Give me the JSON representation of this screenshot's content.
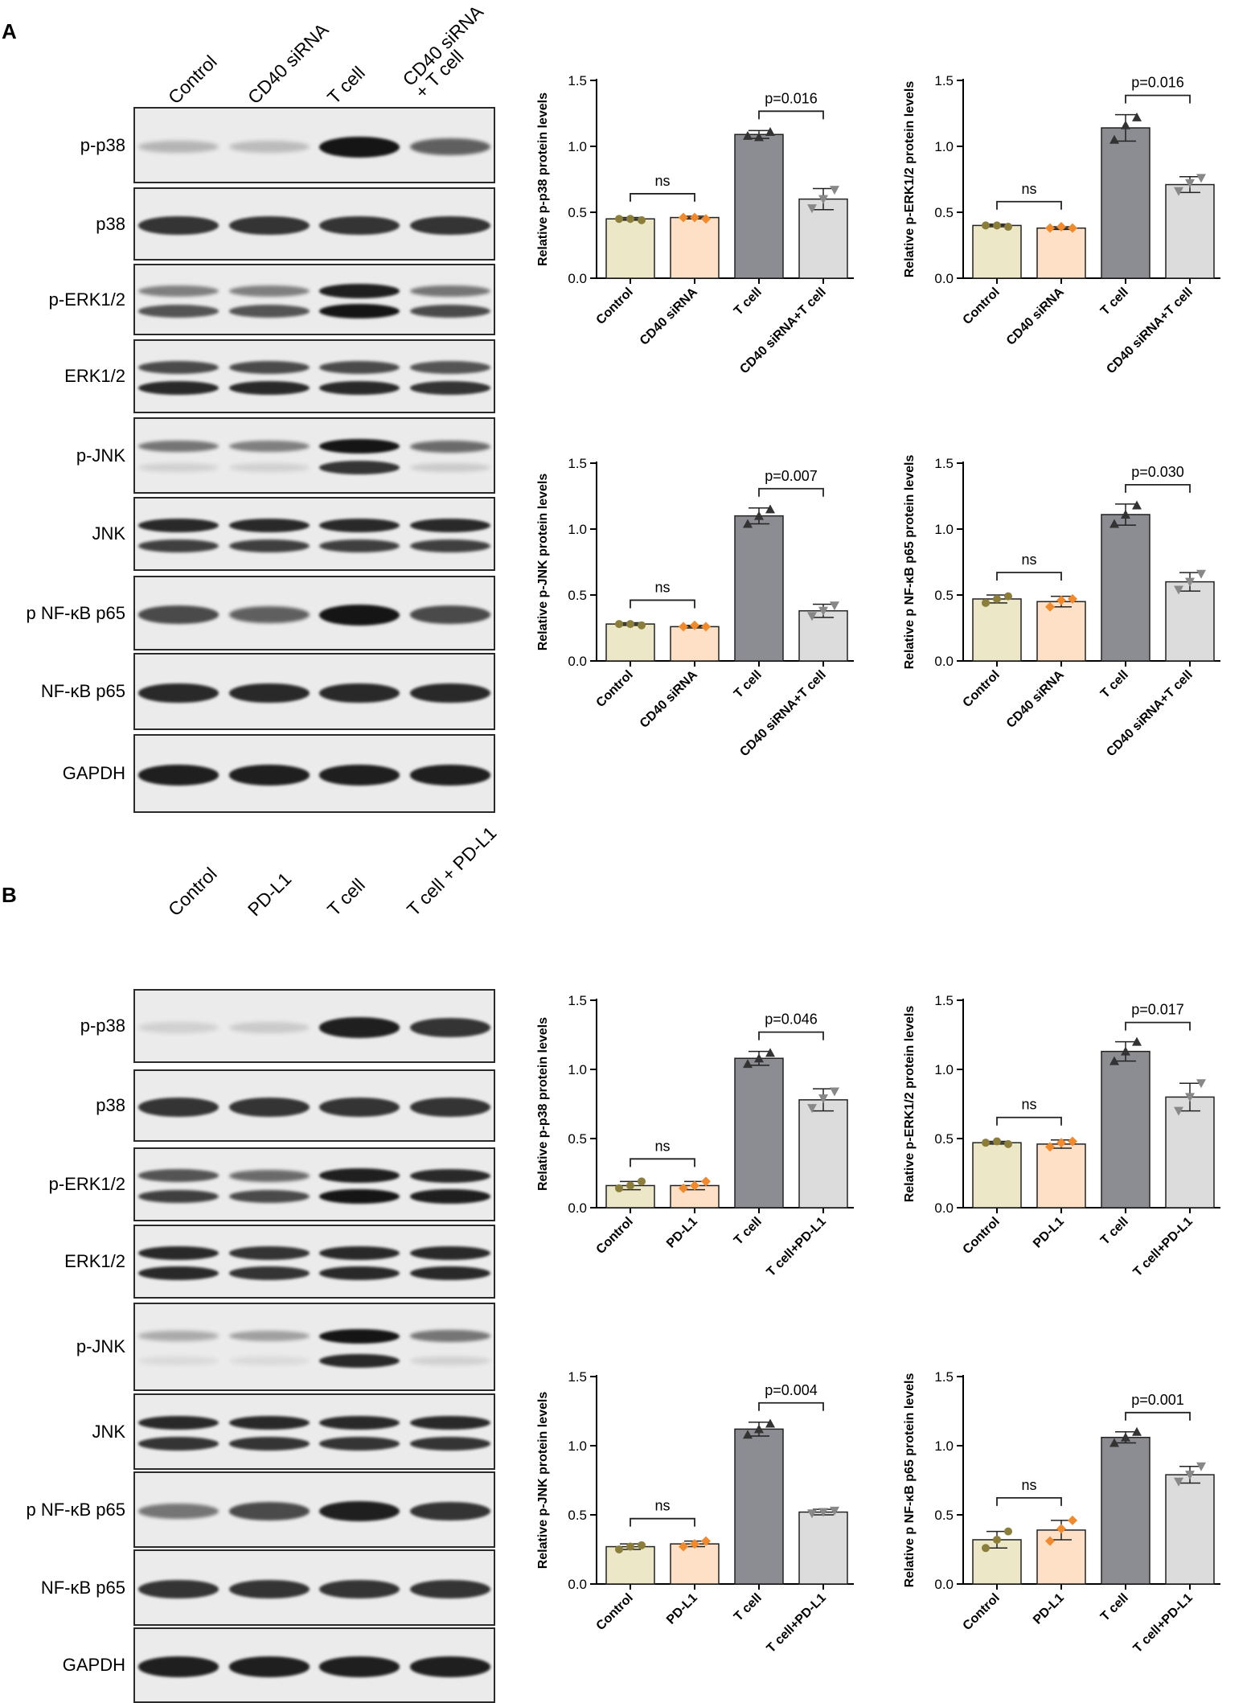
{
  "panels": [
    {
      "letter": "A",
      "lanes": [
        "Control",
        "CD40 siRNA",
        "T cell",
        "CD40 siRNA\n+ T cell"
      ],
      "blots": [
        {
          "label": "p-p38",
          "bands": [
            [
              0.25
            ],
            [
              0.22
            ],
            [
              1.0
            ],
            [
              0.65
            ]
          ]
        },
        {
          "label": "p38",
          "bands": [
            [
              0.85
            ],
            [
              0.85
            ],
            [
              0.85
            ],
            [
              0.85
            ]
          ]
        },
        {
          "label": "p-ERK1/2",
          "bands": [
            [
              0.5,
              0.7
            ],
            [
              0.5,
              0.7
            ],
            [
              0.95,
              1.0
            ],
            [
              0.55,
              0.75
            ]
          ]
        },
        {
          "label": "ERK1/2",
          "bands": [
            [
              0.75,
              0.9
            ],
            [
              0.75,
              0.9
            ],
            [
              0.75,
              0.9
            ],
            [
              0.7,
              0.85
            ]
          ]
        },
        {
          "label": "p-JNK",
          "bands": [
            [
              0.55,
              0.12
            ],
            [
              0.5,
              0.12
            ],
            [
              1.0,
              0.85
            ],
            [
              0.6,
              0.15
            ]
          ]
        },
        {
          "label": "JNK",
          "bands": [
            [
              0.9,
              0.8
            ],
            [
              0.9,
              0.8
            ],
            [
              0.9,
              0.8
            ],
            [
              0.9,
              0.8
            ]
          ]
        },
        {
          "label": "p NF-κB p65",
          "bands": [
            [
              0.75
            ],
            [
              0.65
            ],
            [
              1.0
            ],
            [
              0.75
            ]
          ]
        },
        {
          "label": "NF-κB p65",
          "bands": [
            [
              0.9
            ],
            [
              0.9
            ],
            [
              0.9
            ],
            [
              0.9
            ]
          ]
        },
        {
          "label": "GAPDH",
          "bands": [
            [
              0.95
            ],
            [
              0.95
            ],
            [
              0.95
            ],
            [
              0.95
            ]
          ]
        }
      ]
    },
    {
      "letter": "B",
      "lanes": [
        "Control",
        "PD-L1",
        "T cell",
        "T cell + PD-L1"
      ],
      "blots": [
        {
          "label": "p-p38",
          "bands": [
            [
              0.12
            ],
            [
              0.15
            ],
            [
              0.95
            ],
            [
              0.85
            ]
          ]
        },
        {
          "label": "p38",
          "bands": [
            [
              0.85
            ],
            [
              0.85
            ],
            [
              0.85
            ],
            [
              0.85
            ]
          ]
        },
        {
          "label": "p-ERK1/2",
          "bands": [
            [
              0.7,
              0.8
            ],
            [
              0.6,
              0.75
            ],
            [
              0.95,
              1.0
            ],
            [
              0.9,
              0.95
            ]
          ]
        },
        {
          "label": "ERK1/2",
          "bands": [
            [
              0.9,
              0.9
            ],
            [
              0.85,
              0.85
            ],
            [
              0.9,
              0.9
            ],
            [
              0.9,
              0.9
            ]
          ]
        },
        {
          "label": "p-JNK",
          "bands": [
            [
              0.3,
              0.05
            ],
            [
              0.35,
              0.08
            ],
            [
              1.0,
              0.9
            ],
            [
              0.55,
              0.12
            ]
          ]
        },
        {
          "label": "JNK",
          "bands": [
            [
              0.9,
              0.85
            ],
            [
              0.9,
              0.85
            ],
            [
              0.9,
              0.85
            ],
            [
              0.9,
              0.85
            ]
          ]
        },
        {
          "label": "p NF-κB p65",
          "bands": [
            [
              0.55
            ],
            [
              0.75
            ],
            [
              0.95
            ],
            [
              0.85
            ]
          ]
        },
        {
          "label": "NF-κB p65",
          "bands": [
            [
              0.85
            ],
            [
              0.85
            ],
            [
              0.85
            ],
            [
              0.85
            ]
          ]
        },
        {
          "label": "GAPDH",
          "bands": [
            [
              0.95
            ],
            [
              0.95
            ],
            [
              0.95
            ],
            [
              0.95
            ]
          ]
        }
      ]
    }
  ],
  "colors": {
    "control": "#ece7c6",
    "treat": "#fde0c5",
    "tcell": "#8c8c93",
    "combo": "#dcdcdc",
    "dot_control": "#8b7d3a",
    "dot_treat": "#f08a2c",
    "dot_tcell": "#333333",
    "dot_combo": "#888888"
  },
  "chart_data": [
    {
      "type": "bar",
      "panel": "A",
      "categories": [
        "Control",
        "CD40 siRNA",
        "T cell",
        "CD40 siRNA+T cell"
      ],
      "values": [
        0.45,
        0.46,
        1.09,
        0.6
      ],
      "errors": [
        0.01,
        0.01,
        0.03,
        0.08
      ],
      "points": [
        [
          0.45,
          0.44,
          0.45
        ],
        [
          0.46,
          0.45,
          0.46
        ],
        [
          1.08,
          1.11,
          1.07
        ],
        [
          0.53,
          0.67,
          0.6
        ]
      ],
      "markers": [
        "circle",
        "diamond",
        "triangle",
        "triangle-down"
      ],
      "ylabel": "Relative p-p38 protein levels",
      "ylim": [
        0,
        1.5
      ],
      "yticks": [
        "0.0",
        "0.5",
        "1.0",
        "1.5"
      ],
      "ns_label": "ns",
      "p_label": "p=0.016"
    },
    {
      "type": "bar",
      "panel": "A",
      "categories": [
        "Control",
        "CD40 siRNA",
        "T cell",
        "CD40 siRNA+T cell"
      ],
      "values": [
        0.4,
        0.38,
        1.14,
        0.71
      ],
      "errors": [
        0.01,
        0.01,
        0.1,
        0.06
      ],
      "points": [
        [
          0.4,
          0.39,
          0.4
        ],
        [
          0.38,
          0.38,
          0.39
        ],
        [
          1.05,
          1.22,
          1.16
        ],
        [
          0.66,
          0.76,
          0.72
        ]
      ],
      "markers": [
        "circle",
        "diamond",
        "triangle",
        "triangle-down"
      ],
      "ylabel": "Relative p-ERK1/2 protein levels",
      "ylim": [
        0,
        1.5
      ],
      "yticks": [
        "0.0",
        "0.5",
        "1.0",
        "1.5"
      ],
      "ns_label": "ns",
      "p_label": "p=0.016"
    },
    {
      "type": "bar",
      "panel": "A",
      "categories": [
        "Control",
        "CD40 siRNA",
        "T cell",
        "CD40 siRNA+T cell"
      ],
      "values": [
        0.28,
        0.26,
        1.1,
        0.38
      ],
      "errors": [
        0.01,
        0.01,
        0.06,
        0.05
      ],
      "points": [
        [
          0.28,
          0.27,
          0.28
        ],
        [
          0.26,
          0.26,
          0.27
        ],
        [
          1.04,
          1.15,
          1.1
        ],
        [
          0.34,
          0.42,
          0.38
        ]
      ],
      "markers": [
        "circle",
        "diamond",
        "triangle",
        "triangle-down"
      ],
      "ylabel": "Relative p-JNK protein levels",
      "ylim": [
        0,
        1.5
      ],
      "yticks": [
        "0.0",
        "0.5",
        "1.0",
        "1.5"
      ],
      "ns_label": "ns",
      "p_label": "p=0.007"
    },
    {
      "type": "bar",
      "panel": "A",
      "categories": [
        "Control",
        "CD40 siRNA",
        "T cell",
        "CD40 siRNA+T cell"
      ],
      "values": [
        0.47,
        0.45,
        1.11,
        0.6
      ],
      "errors": [
        0.03,
        0.04,
        0.08,
        0.07
      ],
      "points": [
        [
          0.44,
          0.49,
          0.47
        ],
        [
          0.41,
          0.47,
          0.46
        ],
        [
          1.04,
          1.18,
          1.11
        ],
        [
          0.54,
          0.66,
          0.6
        ]
      ],
      "markers": [
        "circle",
        "diamond",
        "triangle",
        "triangle-down"
      ],
      "ylabel": "Relative p NF-κB p65 protein levels",
      "ylim": [
        0,
        1.5
      ],
      "yticks": [
        "0.0",
        "0.5",
        "1.0",
        "1.5"
      ],
      "ns_label": "ns",
      "p_label": "p=0.030"
    },
    {
      "type": "bar",
      "panel": "B",
      "categories": [
        "Control",
        "PD-L1",
        "T cell",
        "T cell+PD-L1"
      ],
      "values": [
        0.16,
        0.16,
        1.08,
        0.78
      ],
      "errors": [
        0.03,
        0.03,
        0.05,
        0.08
      ],
      "points": [
        [
          0.14,
          0.19,
          0.16
        ],
        [
          0.14,
          0.19,
          0.16
        ],
        [
          1.04,
          1.12,
          1.08
        ],
        [
          0.72,
          0.84,
          0.79
        ]
      ],
      "markers": [
        "circle",
        "diamond",
        "triangle",
        "triangle-down"
      ],
      "ylabel": "Relative p-p38 protein levels",
      "ylim": [
        0,
        1.5
      ],
      "yticks": [
        "0.0",
        "0.5",
        "1.0",
        "1.5"
      ],
      "ns_label": "ns",
      "p_label": "p=0.046"
    },
    {
      "type": "bar",
      "panel": "B",
      "categories": [
        "Control",
        "PD-L1",
        "T cell",
        "T cell+PD-L1"
      ],
      "values": [
        0.47,
        0.46,
        1.13,
        0.8
      ],
      "errors": [
        0.01,
        0.03,
        0.07,
        0.1
      ],
      "points": [
        [
          0.47,
          0.46,
          0.48
        ],
        [
          0.44,
          0.48,
          0.47
        ],
        [
          1.06,
          1.2,
          1.13
        ],
        [
          0.7,
          0.9,
          0.8
        ]
      ],
      "markers": [
        "circle",
        "diamond",
        "triangle",
        "triangle-down"
      ],
      "ylabel": "Relative p-ERK1/2 protein levels",
      "ylim": [
        0,
        1.5
      ],
      "yticks": [
        "0.0",
        "0.5",
        "1.0",
        "1.5"
      ],
      "ns_label": "ns",
      "p_label": "p=0.017"
    },
    {
      "type": "bar",
      "panel": "B",
      "categories": [
        "Control",
        "PD-L1",
        "T cell",
        "T cell+PD-L1"
      ],
      "values": [
        0.27,
        0.29,
        1.12,
        0.52
      ],
      "errors": [
        0.02,
        0.02,
        0.05,
        0.02
      ],
      "points": [
        [
          0.25,
          0.28,
          0.27
        ],
        [
          0.27,
          0.31,
          0.29
        ],
        [
          1.08,
          1.16,
          1.12
        ],
        [
          0.51,
          0.53,
          0.52
        ]
      ],
      "markers": [
        "circle",
        "diamond",
        "triangle",
        "triangle-down"
      ],
      "ylabel": "Relative p-JNK protein levels",
      "ylim": [
        0,
        1.5
      ],
      "yticks": [
        "0.0",
        "0.5",
        "1.0",
        "1.5"
      ],
      "ns_label": "ns",
      "p_label": "p=0.004"
    },
    {
      "type": "bar",
      "panel": "B",
      "categories": [
        "Control",
        "PD-L1",
        "T cell",
        "T cell+PD-L1"
      ],
      "values": [
        0.32,
        0.39,
        1.06,
        0.79
      ],
      "errors": [
        0.06,
        0.07,
        0.04,
        0.06
      ],
      "points": [
        [
          0.26,
          0.38,
          0.32
        ],
        [
          0.31,
          0.46,
          0.4
        ],
        [
          1.02,
          1.1,
          1.06
        ],
        [
          0.74,
          0.85,
          0.79
        ]
      ],
      "markers": [
        "circle",
        "diamond",
        "triangle",
        "triangle-down"
      ],
      "ylabel": "Relative p NF-κB p65 protein levels",
      "ylim": [
        0,
        1.5
      ],
      "yticks": [
        "0.0",
        "0.5",
        "1.0",
        "1.5"
      ],
      "ns_label": "ns",
      "p_label": "p=0.001"
    }
  ]
}
